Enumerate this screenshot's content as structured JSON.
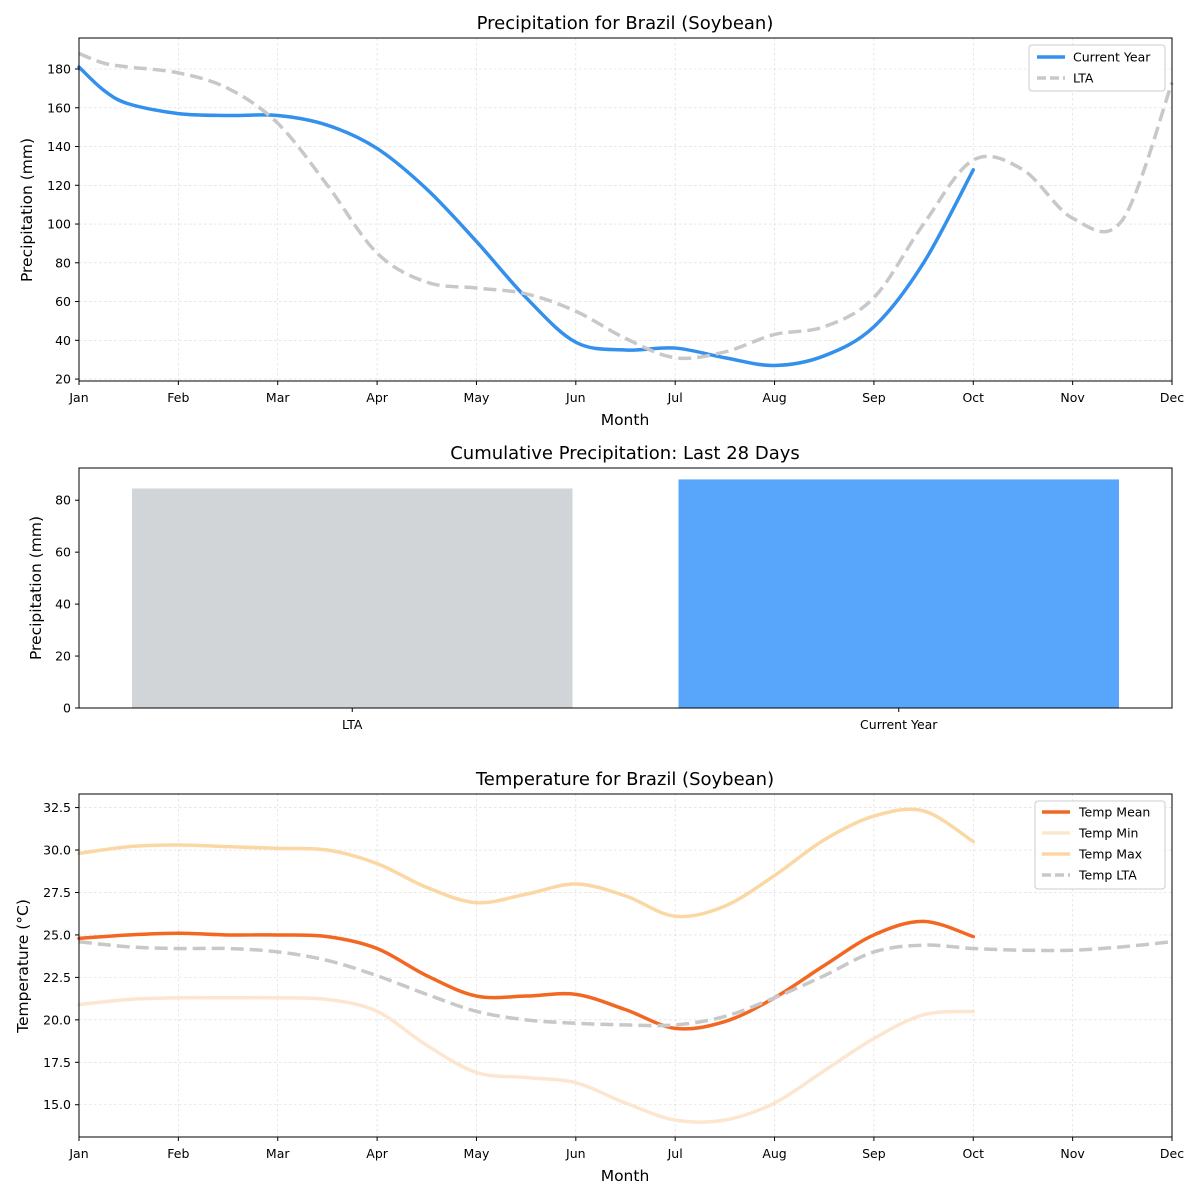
{
  "chart_data": [
    {
      "type": "line",
      "title": "Precipitation for Brazil (Soybean)",
      "xlabel": "Month",
      "ylabel": "Precipitation (mm)",
      "categories": [
        "Jan",
        "Feb",
        "Mar",
        "Apr",
        "May",
        "Jun",
        "Jul",
        "Aug",
        "Sep",
        "Oct",
        "Nov",
        "Dec"
      ],
      "xlim": [
        0,
        11
      ],
      "ylim": [
        19,
        196
      ],
      "yticks": [
        20,
        40,
        60,
        80,
        100,
        120,
        140,
        160,
        180
      ],
      "ytick_labels": [
        "20",
        "40",
        "60",
        "80",
        "100",
        "120",
        "140",
        "160",
        "180"
      ],
      "grid": true,
      "legend_position": "top-right",
      "series": [
        {
          "name": "Current Year",
          "style": "solid",
          "color": "#3390ed",
          "x": [
            0,
            0.25,
            0.5,
            1,
            1.5,
            2,
            2.5,
            3,
            3.5,
            4,
            4.5,
            5,
            5.5,
            6,
            6.5,
            7,
            7.5,
            8,
            8.5,
            9
          ],
          "y": [
            181,
            169,
            162,
            157,
            156,
            156,
            151,
            139,
            118,
            91,
            62,
            39,
            35,
            36,
            31,
            27,
            32,
            47,
            80,
            128
          ]
        },
        {
          "name": "LTA",
          "style": "dashed",
          "color": "#c8c8c8",
          "x": [
            0,
            0.25,
            0.5,
            1,
            1.5,
            2,
            2.5,
            3,
            3.5,
            4,
            4.5,
            5,
            5.5,
            6,
            6.5,
            7,
            7.5,
            8,
            8.5,
            9,
            9.5,
            10,
            10.5,
            11
          ],
          "y": [
            188,
            183,
            181,
            178,
            170,
            152,
            120,
            85,
            70,
            67,
            64,
            55,
            41,
            31,
            34,
            43,
            47,
            62,
            100,
            133,
            128,
            103,
            102,
            173
          ]
        }
      ]
    },
    {
      "type": "bar",
      "title": "Cumulative Precipitation: Last 28 Days",
      "xlabel": "",
      "ylabel": "Precipitation (mm)",
      "categories": [
        "LTA",
        "Current Year"
      ],
      "values": [
        84.5,
        88.0
      ],
      "colors": [
        "#d1d5d8",
        "#58a6fb"
      ],
      "ylim": [
        0,
        92.4
      ],
      "yticks": [
        0,
        20,
        40,
        60,
        80
      ],
      "ytick_labels": [
        "0",
        "20",
        "40",
        "60",
        "80"
      ]
    },
    {
      "type": "line",
      "title": "Temperature for Brazil (Soybean)",
      "xlabel": "Month",
      "ylabel": "Temperature (°C)",
      "categories": [
        "Jan",
        "Feb",
        "Mar",
        "Apr",
        "May",
        "Jun",
        "Jul",
        "Aug",
        "Sep",
        "Oct",
        "Nov",
        "Dec"
      ],
      "xlim": [
        0,
        11
      ],
      "ylim": [
        13.1,
        33.3
      ],
      "yticks": [
        15.0,
        17.5,
        20.0,
        22.5,
        25.0,
        27.5,
        30.0,
        32.5
      ],
      "ytick_labels": [
        "15.0",
        "17.5",
        "20.0",
        "22.5",
        "25.0",
        "27.5",
        "30.0",
        "32.5"
      ],
      "grid": true,
      "legend_position": "top-right",
      "series": [
        {
          "name": "Temp Mean",
          "style": "solid",
          "color": "#f26722",
          "x": [
            0,
            0.5,
            1,
            1.5,
            2,
            2.5,
            3,
            3.5,
            4,
            4.5,
            5,
            5.5,
            6,
            6.5,
            7,
            7.5,
            8,
            8.5,
            9
          ],
          "y": [
            24.8,
            25.0,
            25.1,
            25.0,
            25.0,
            24.9,
            24.2,
            22.6,
            21.4,
            21.4,
            21.5,
            20.6,
            19.5,
            19.9,
            21.3,
            23.2,
            25.0,
            25.8,
            24.9
          ]
        },
        {
          "name": "Temp Min",
          "style": "solid",
          "color": "#fde6cf",
          "x": [
            0,
            0.5,
            1,
            1.5,
            2,
            2.5,
            3,
            3.5,
            4,
            4.5,
            5,
            5.5,
            6,
            6.5,
            7,
            7.5,
            8,
            8.5,
            9
          ],
          "y": [
            20.9,
            21.2,
            21.3,
            21.3,
            21.3,
            21.2,
            20.5,
            18.5,
            16.9,
            16.6,
            16.3,
            15.1,
            14.1,
            14.1,
            15.1,
            17.0,
            18.9,
            20.3,
            20.5
          ]
        },
        {
          "name": "Temp Max",
          "style": "solid",
          "color": "#fbd8a3",
          "x": [
            0,
            0.5,
            1,
            1.5,
            2,
            2.5,
            3,
            3.5,
            4,
            4.5,
            5,
            5.5,
            6,
            6.5,
            7,
            7.5,
            8,
            8.5,
            9
          ],
          "y": [
            29.8,
            30.2,
            30.3,
            30.2,
            30.1,
            30.0,
            29.2,
            27.8,
            26.9,
            27.4,
            28.0,
            27.3,
            26.1,
            26.7,
            28.5,
            30.6,
            32.0,
            32.3,
            30.5
          ]
        },
        {
          "name": "Temp LTA",
          "style": "dashed",
          "color": "#c8c8c8",
          "x": [
            0,
            0.5,
            1,
            1.5,
            2,
            2.5,
            3,
            3.5,
            4,
            4.5,
            5,
            5.5,
            6,
            6.5,
            7,
            7.5,
            8,
            8.5,
            9,
            9.5,
            10,
            10.5,
            11
          ],
          "y": [
            24.6,
            24.3,
            24.2,
            24.2,
            24.0,
            23.5,
            22.6,
            21.5,
            20.5,
            20.0,
            19.8,
            19.7,
            19.7,
            20.2,
            21.3,
            22.6,
            24.0,
            24.4,
            24.2,
            24.1,
            24.1,
            24.3,
            24.6
          ]
        }
      ]
    }
  ]
}
